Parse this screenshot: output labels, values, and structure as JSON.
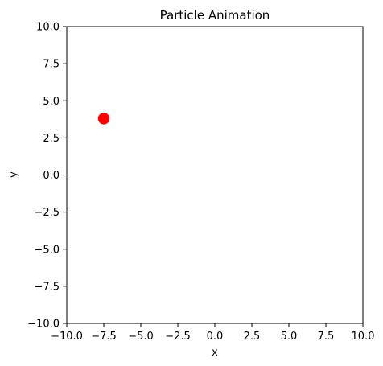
{
  "chart_data": {
    "type": "scatter",
    "title": "Particle Animation",
    "xlabel": "x",
    "ylabel": "y",
    "xlim": [
      -10,
      10
    ],
    "ylim": [
      -10,
      10
    ],
    "xticks": [
      -10.0,
      -7.5,
      -5.0,
      -2.5,
      0.0,
      2.5,
      5.0,
      7.5,
      10.0
    ],
    "yticks": [
      -10.0,
      -7.5,
      -5.0,
      -2.5,
      0.0,
      2.5,
      5.0,
      7.5,
      10.0
    ],
    "xtick_labels": [
      "−10.0",
      "−7.5",
      "−5.0",
      "−2.5",
      "0.0",
      "2.5",
      "5.0",
      "7.5",
      "10.0"
    ],
    "ytick_labels": [
      "−10.0",
      "−7.5",
      "−5.0",
      "−2.5",
      "0.0",
      "2.5",
      "5.0",
      "7.5",
      "10.0"
    ],
    "grid": false,
    "series": [
      {
        "points": [
          {
            "x": -7.5,
            "y": 3.8
          }
        ],
        "color": "#ff0000",
        "marker": "circle"
      }
    ]
  }
}
